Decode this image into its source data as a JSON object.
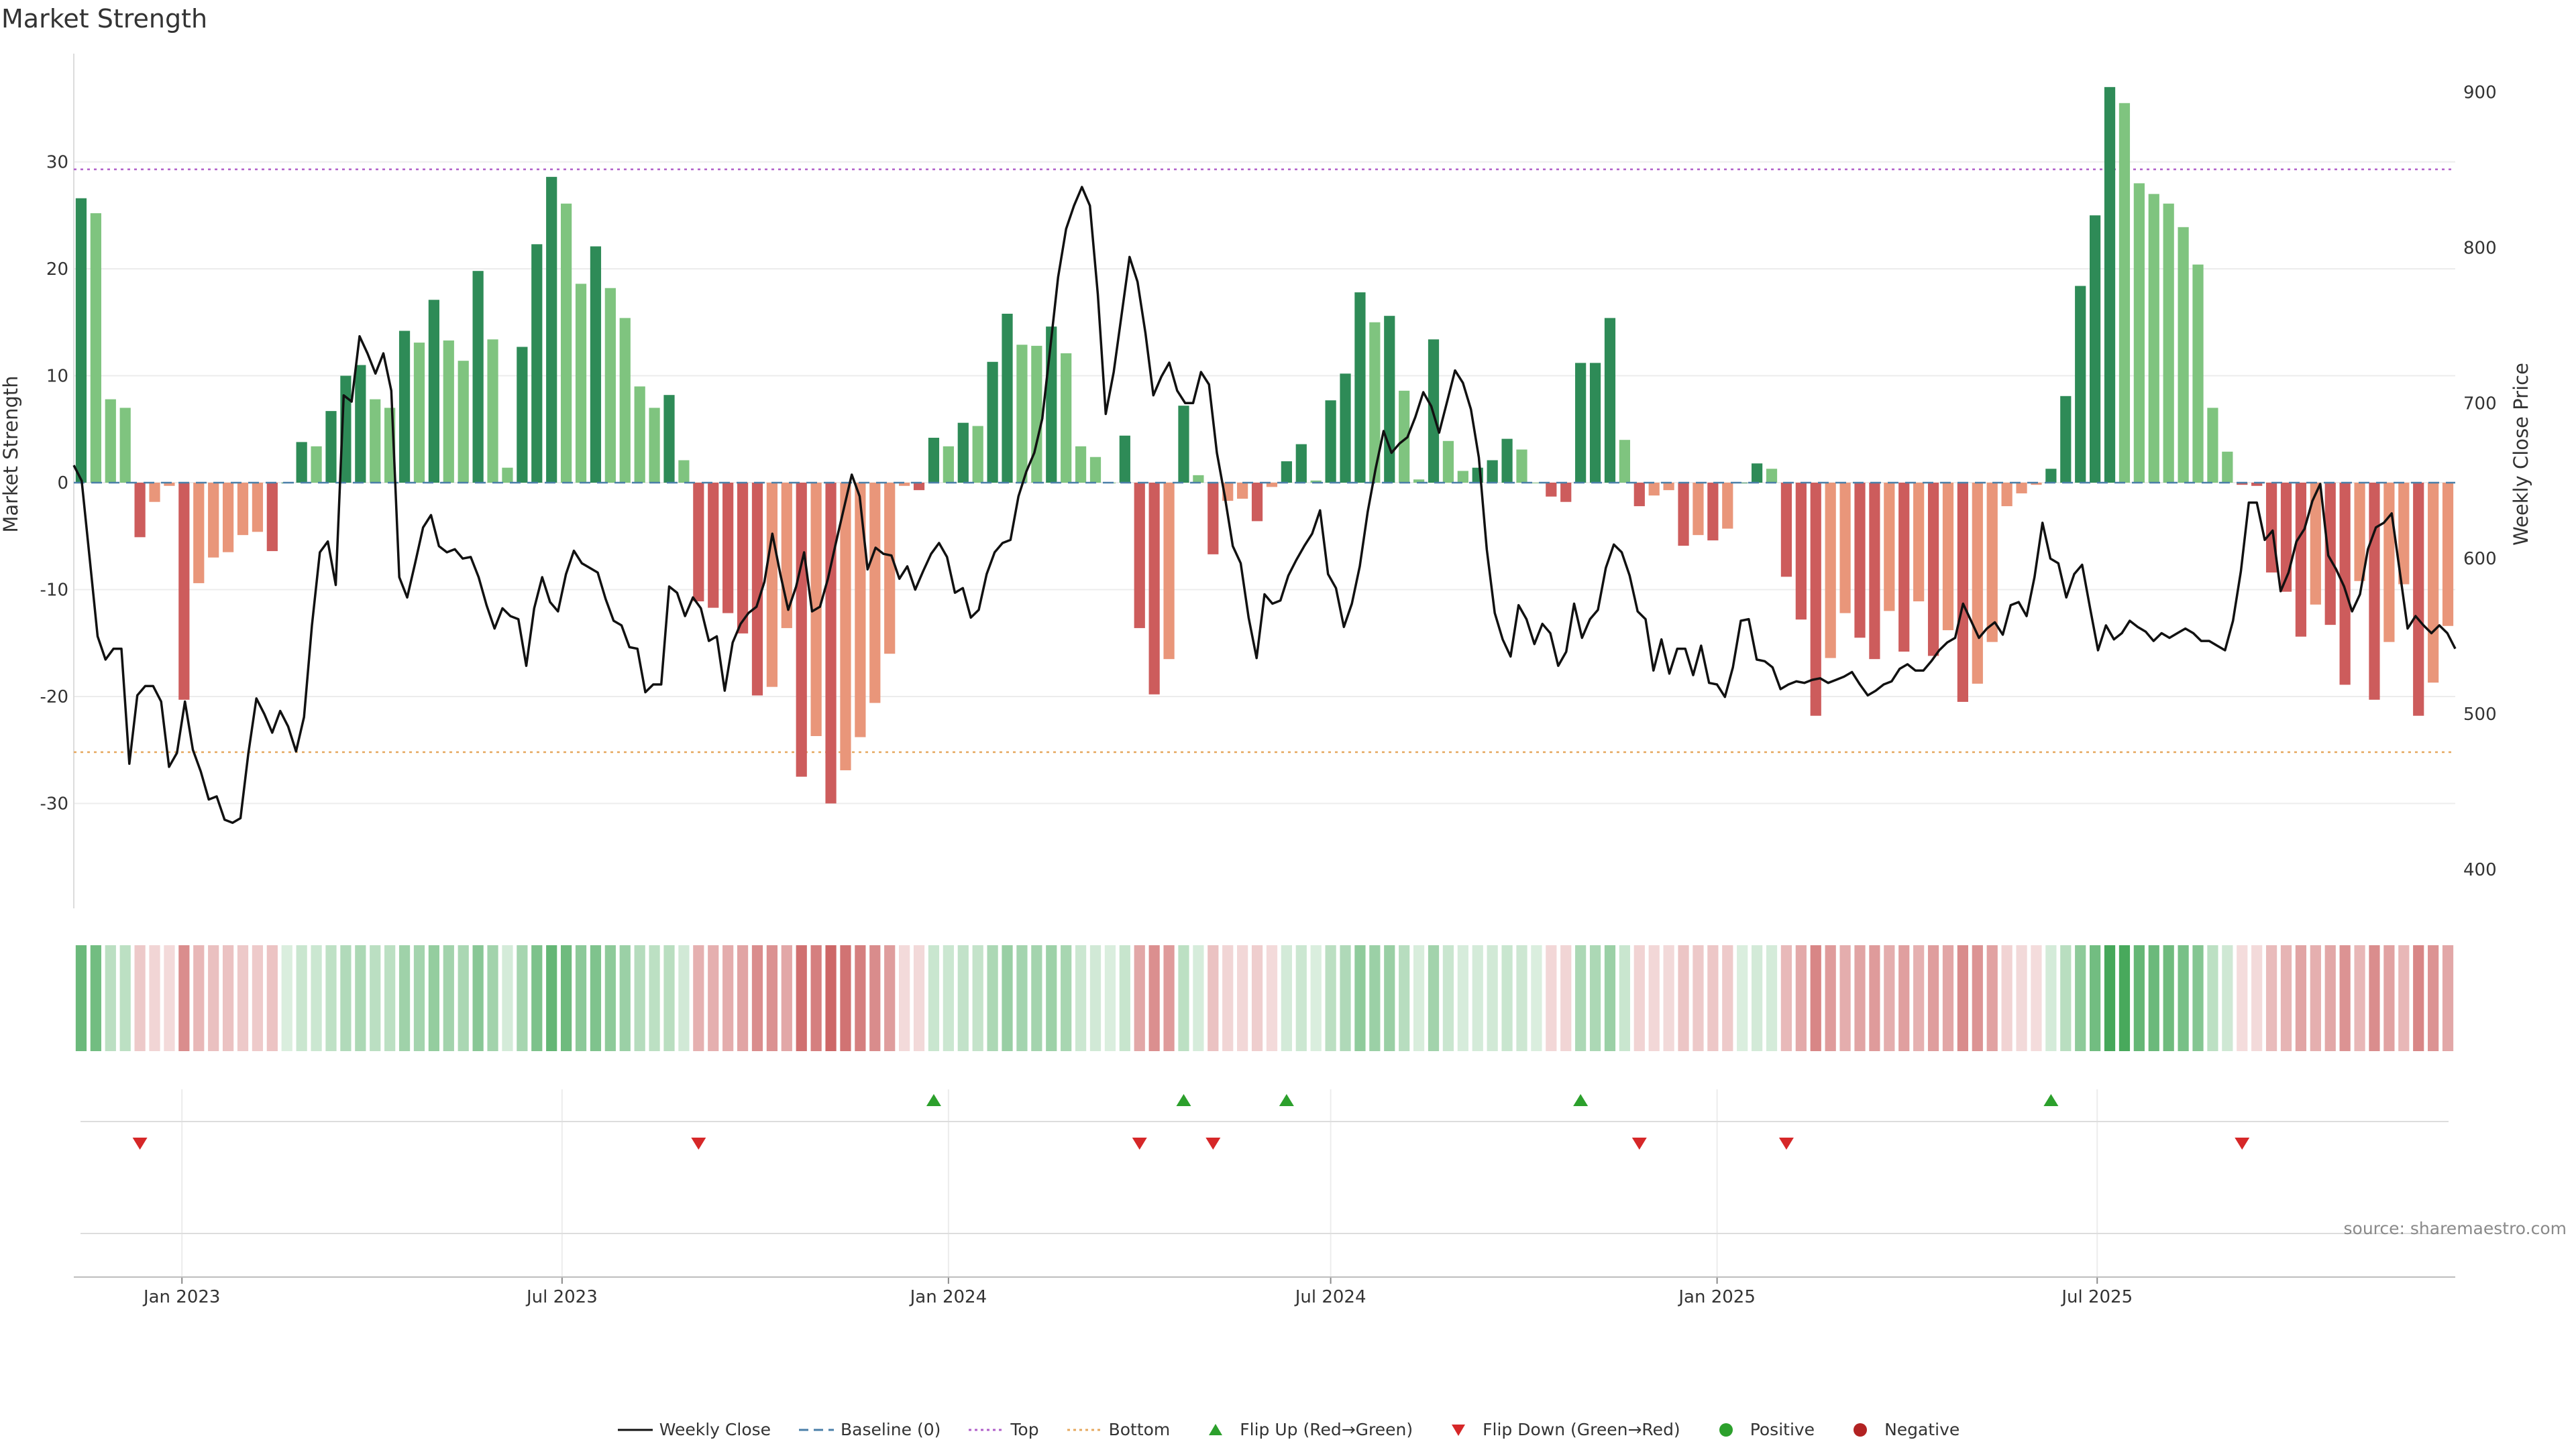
{
  "title": "Market Strength",
  "source": "source: sharemaestro.com",
  "chart_data": {
    "type": "bar",
    "title": "Market Strength",
    "ylabel": "Market Strength",
    "ylabel_right": "Weekly Close Price",
    "ylim": [
      -39.5,
      40
    ],
    "ylim_right": [
      362,
      935
    ],
    "yticks": [
      -30,
      -20,
      -10,
      0,
      10,
      20,
      30
    ],
    "yticks_right": [
      400,
      500,
      600,
      700,
      800,
      900
    ],
    "top_level": 29.3,
    "bottom_level": -25.2,
    "grid": true,
    "colors": {
      "pos_strong": "#2e8b57",
      "pos_light": "#7fc47f",
      "neg_strong": "#cd5c5c",
      "neg_light": "#e9967a",
      "heat_green": "#46a85a",
      "heat_red": "#c65050",
      "flip_up": "#2ca02c",
      "flip_down": "#d62728",
      "top_line": "#b05fc9",
      "bottom_line": "#e6a85f",
      "baseline": "#4a7fa8"
    },
    "x_dates": {
      "start": "2022-11-14",
      "step_days": 7
    },
    "x_tick_labels": [
      {
        "label": "Jan 2023",
        "date": "2023-01-01"
      },
      {
        "label": "Jul 2023",
        "date": "2023-07-01"
      },
      {
        "label": "Jan 2024",
        "date": "2024-01-01"
      },
      {
        "label": "Jul 2024",
        "date": "2024-07-01"
      },
      {
        "label": "Jan 2025",
        "date": "2025-01-01"
      },
      {
        "label": "Jul 2025",
        "date": "2025-07-01"
      }
    ],
    "series": [
      {
        "name": "Market Strength",
        "type": "bar",
        "values": [
          26.6,
          25.2,
          7.8,
          7.0,
          -5.1,
          -1.8,
          -0.3,
          -20.3,
          -9.4,
          -7.0,
          -6.5,
          -4.9,
          -4.6,
          -6.4,
          0.0,
          3.8,
          3.4,
          6.7,
          10.0,
          11.0,
          7.8,
          7.0,
          14.2,
          13.1,
          17.1,
          13.3,
          11.4,
          19.8,
          13.4,
          1.4,
          12.7,
          22.3,
          28.6,
          26.1,
          18.6,
          22.1,
          18.2,
          15.4,
          9.0,
          7.0,
          8.2,
          2.1,
          -11.1,
          -11.7,
          -12.2,
          -14.1,
          -19.9,
          -19.1,
          -13.6,
          -27.5,
          -23.7,
          -30.0,
          -26.9,
          -23.8,
          -20.6,
          -16.0,
          -0.3,
          -0.7,
          4.2,
          3.4,
          5.6,
          5.3,
          11.3,
          15.8,
          12.9,
          12.8,
          14.6,
          12.1,
          3.4,
          2.4,
          0.0,
          4.4,
          -13.6,
          -19.8,
          -16.5,
          7.2,
          0.7,
          -6.7,
          -1.7,
          -1.5,
          -3.6,
          -0.4,
          2.0,
          3.6,
          0.2,
          7.7,
          10.2,
          17.8,
          15.0,
          15.6,
          8.6,
          0.3,
          13.4,
          3.9,
          1.1,
          1.4,
          2.1,
          4.1,
          3.1,
          0.0,
          -1.3,
          -1.8,
          11.2,
          11.2,
          15.4,
          4.0,
          -2.2,
          -1.2,
          -0.7,
          -5.9,
          -4.9,
          -5.4,
          -4.3,
          0.0,
          1.8,
          1.3,
          -8.8,
          -12.8,
          -21.8,
          -16.4,
          -12.2,
          -14.5,
          -16.5,
          -12.0,
          -15.8,
          -11.1,
          -16.2,
          -13.8,
          -20.5,
          -18.8,
          -14.9,
          -2.2,
          -1.0,
          -0.2,
          1.3,
          8.1,
          18.4,
          25.0,
          37.0,
          35.5,
          28.0,
          27.0,
          26.1,
          23.9,
          20.4,
          7.0,
          2.9,
          -0.2,
          -0.3,
          -8.4,
          -10.2,
          -14.4,
          -11.4,
          -13.3,
          -18.9,
          -9.2,
          -20.3,
          -14.9,
          -9.5,
          -21.8,
          -18.7,
          -13.4
        ]
      },
      {
        "name": "Weekly Close",
        "type": "line",
        "axis": "right",
        "values": [
          660,
          650,
          600,
          550,
          535,
          542,
          542,
          468,
          512,
          518,
          518,
          508,
          466,
          475,
          508,
          477,
          463,
          445,
          447,
          432,
          430,
          433,
          475,
          510,
          500,
          488,
          502,
          492,
          476,
          498,
          557,
          604,
          611,
          583,
          705,
          701,
          743,
          732,
          719,
          732,
          708,
          588,
          575,
          597,
          620,
          628,
          608,
          604,
          606,
          600,
          601,
          588,
          570,
          555,
          568,
          563,
          561,
          531,
          568,
          588,
          572,
          566,
          590,
          605,
          597,
          594,
          591,
          574,
          560,
          557,
          543,
          542,
          514,
          519,
          519,
          582,
          578,
          563,
          575,
          568,
          547,
          550,
          515,
          546,
          558,
          565,
          569,
          585,
          616,
          590,
          567,
          582,
          604,
          566,
          569,
          587,
          610,
          632,
          654,
          640,
          593,
          607,
          603,
          602,
          587,
          595,
          580,
          592,
          603,
          610,
          601,
          578,
          581,
          562,
          567,
          590,
          604,
          610,
          612,
          640,
          656,
          668,
          690,
          735,
          781,
          812,
          827,
          839,
          827,
          770,
          693,
          720,
          757,
          794,
          778,
          745,
          705,
          717,
          726,
          708,
          700,
          700,
          720,
          712,
          668,
          640,
          608,
          597,
          562,
          536,
          577,
          571,
          573,
          589,
          599,
          608,
          616,
          631,
          590,
          581,
          556,
          571,
          595,
          630,
          658,
          682,
          668,
          674,
          678,
          691,
          707,
          698,
          681,
          701,
          721,
          713,
          696,
          665,
          606,
          565,
          548,
          537,
          570,
          561,
          545,
          558,
          552,
          531,
          540,
          571,
          549,
          561,
          567,
          594,
          609,
          604,
          589,
          566,
          561,
          528,
          548,
          526,
          542,
          542,
          525,
          544,
          520,
          519,
          511,
          530,
          560,
          561,
          535,
          534,
          530,
          516,
          519,
          521,
          520,
          522,
          523,
          520,
          522,
          524,
          527,
          519,
          512,
          515,
          519,
          521,
          529,
          532,
          528,
          528,
          534,
          541,
          546,
          549,
          571,
          560,
          549,
          555,
          559,
          551,
          570,
          572,
          563,
          588,
          623,
          600,
          597,
          575,
          590,
          596,
          568,
          541,
          557,
          548,
          552,
          560,
          556,
          553,
          547,
          552,
          549,
          552,
          555,
          552,
          547,
          547,
          544,
          541,
          560,
          592,
          636,
          636,
          612,
          618,
          579,
          591,
          611,
          619,
          637,
          648,
          602,
          593,
          582,
          566,
          577,
          606,
          620,
          623,
          629,
          592,
          555,
          563,
          557,
          552,
          557,
          552,
          542
        ]
      }
    ],
    "strength_close": [
      665,
      655,
      600,
      548,
      532,
      540,
      540,
      468,
      510,
      518,
      518,
      508,
      467,
      476,
      508,
      477,
      463,
      445,
      447,
      432,
      430,
      433,
      475,
      510,
      500,
      488,
      502,
      492,
      476,
      498,
      557,
      604,
      611,
      583,
      705,
      701,
      742,
      733,
      719,
      732,
      708,
      588,
      575,
      597,
      620,
      604,
      606,
      600,
      601,
      588,
      570,
      555,
      568,
      563,
      561,
      531,
      568,
      588,
      572,
      566,
      590,
      605,
      597,
      594,
      591,
      574,
      560,
      557,
      543,
      542,
      514,
      519,
      519,
      582,
      578,
      563,
      575,
      568,
      547,
      550,
      515,
      546,
      558,
      565,
      569,
      585,
      616,
      582,
      567,
      582,
      604,
      566,
      569,
      587,
      610,
      632,
      654,
      640,
      593,
      607,
      603,
      602,
      587,
      595,
      580,
      592,
      603,
      610,
      601,
      578,
      581,
      562,
      567,
      590,
      604,
      610,
      612,
      640,
      656,
      668,
      690,
      735,
      781,
      812,
      827,
      839,
      827,
      770,
      693,
      720,
      757,
      794,
      778,
      745,
      705,
      717,
      726,
      708,
      700,
      700,
      720,
      712,
      668,
      640,
      608,
      597,
      562,
      536,
      577,
      571,
      573,
      589,
      599,
      608,
      616,
      631,
      590,
      581,
      556,
      571,
      595,
      630,
      658,
      682,
      668,
      674,
      678,
      691,
      707,
      698,
      681,
      701,
      721,
      713,
      696,
      665,
      606,
      565,
      548,
      537,
      570,
      561,
      545,
      558,
      552
    ],
    "legend": [
      {
        "label": "Weekly Close",
        "icon": "line-solid-black"
      },
      {
        "label": "Baseline (0)",
        "icon": "line-dashed-blue"
      },
      {
        "label": "Top",
        "icon": "line-dotted-purple"
      },
      {
        "label": "Bottom",
        "icon": "line-dotted-orange"
      },
      {
        "label": "Flip Up (Red→Green)",
        "icon": "triangle-up-green"
      },
      {
        "label": "Flip Down (Green→Red)",
        "icon": "triangle-down-red"
      },
      {
        "label": "Positive",
        "icon": "dot-green"
      },
      {
        "label": "Negative",
        "icon": "dot-red"
      }
    ]
  }
}
